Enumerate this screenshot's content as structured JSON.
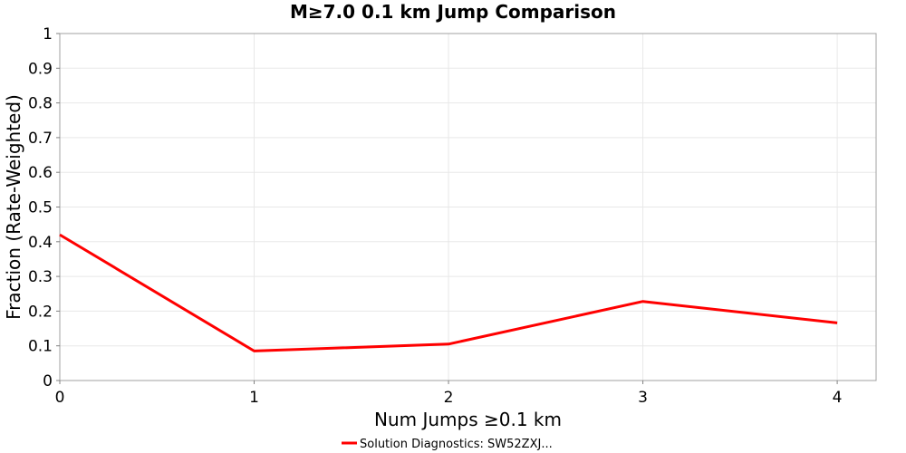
{
  "chart_data": {
    "type": "line",
    "title": "M≥7.0 0.1 km Jump Comparison",
    "xlabel": "Num Jumps ≥0.1 km",
    "ylabel": "Fraction (Rate-Weighted)",
    "xlim": [
      0,
      4.2
    ],
    "ylim": [
      0,
      1
    ],
    "xticks": [
      "0",
      "1",
      "2",
      "3",
      "4"
    ],
    "yticks": [
      "0",
      "0.1",
      "0.2",
      "0.3",
      "0.4",
      "0.5",
      "0.6",
      "0.7",
      "0.8",
      "0.9",
      "1"
    ],
    "grid": true,
    "legend_position": "bottom",
    "series": [
      {
        "name": "Solution Diagnostics: SW52ZXJ...",
        "color": "#ff0000",
        "x": [
          0,
          1,
          2,
          3,
          4
        ],
        "y": [
          0.42,
          0.085,
          0.105,
          0.228,
          0.166
        ]
      }
    ]
  }
}
